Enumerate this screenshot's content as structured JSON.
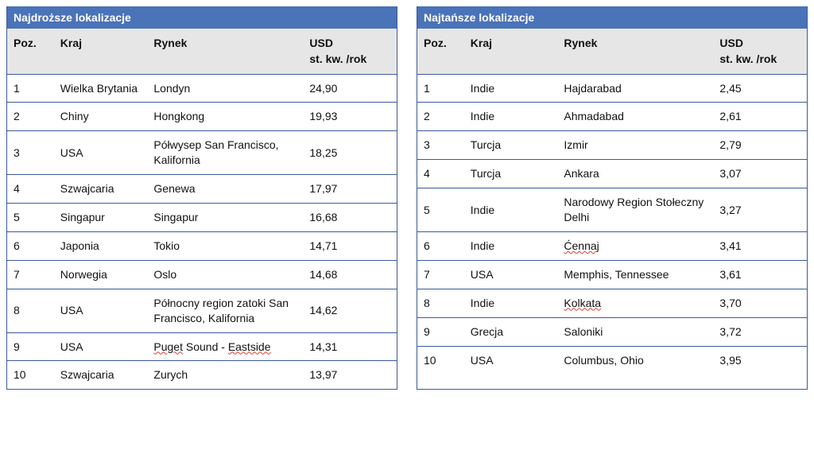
{
  "tables": {
    "expensive": {
      "title": "Najdroższe lokalizacje",
      "columns": {
        "poz": "Poz.",
        "kraj": "Kraj",
        "rynek": "Rynek",
        "usd": "USD\nst. kw. /rok"
      },
      "rows": [
        {
          "poz": "1",
          "kraj": "Wielka Brytania",
          "rynek": "Londyn",
          "usd": "24,90",
          "spell": false
        },
        {
          "poz": "2",
          "kraj": "Chiny",
          "rynek": "Hongkong",
          "usd": "19,93",
          "spell": false
        },
        {
          "poz": "3",
          "kraj": "USA",
          "rynek": "Półwysep San Francisco, Kalifornia",
          "usd": "18,25",
          "spell": false
        },
        {
          "poz": "4",
          "kraj": "Szwajcaria",
          "rynek": "Genewa",
          "usd": "17,97",
          "spell": false
        },
        {
          "poz": "5",
          "kraj": "Singapur",
          "rynek": "Singapur",
          "usd": "16,68",
          "spell": false
        },
        {
          "poz": "6",
          "kraj": "Japonia",
          "rynek": "Tokio",
          "usd": "14,71",
          "spell": false
        },
        {
          "poz": "7",
          "kraj": "Norwegia",
          "rynek": "Oslo",
          "usd": "14,68",
          "spell": false
        },
        {
          "poz": "8",
          "kraj": "USA",
          "rynek": "Północny region zatoki San Francisco, Kalifornia",
          "usd": "14,62",
          "spell": false
        },
        {
          "poz": "9",
          "kraj": "USA",
          "rynek": "Puget Sound - Eastside",
          "usd": "14,31",
          "spell": "Puget",
          "spellPart2": "Eastside"
        },
        {
          "poz": "10",
          "kraj": "Szwajcaria",
          "rynek": "Zurych",
          "usd": "13,97",
          "spell": false
        }
      ]
    },
    "cheap": {
      "title": "Najtańsze lokalizacje",
      "columns": {
        "poz": "Poz.",
        "kraj": "Kraj",
        "rynek": "Rynek",
        "usd": "USD\nst. kw. /rok"
      },
      "rows": [
        {
          "poz": "1",
          "kraj": "Indie",
          "rynek": "Hajdarabad",
          "usd": "2,45",
          "spell": false
        },
        {
          "poz": "2",
          "kraj": "Indie",
          "rynek": "Ahmadabad",
          "usd": "2,61",
          "spell": false
        },
        {
          "poz": "3",
          "kraj": "Turcja",
          "rynek": "Izmir",
          "usd": "2,79",
          "spell": false
        },
        {
          "poz": "4",
          "kraj": "Turcja",
          "rynek": "Ankara",
          "usd": "3,07",
          "spell": false
        },
        {
          "poz": "5",
          "kraj": "Indie",
          "rynek": "Narodowy Region Stołeczny Delhi",
          "usd": "3,27",
          "spell": false
        },
        {
          "poz": "6",
          "kraj": "Indie",
          "rynek": "Ćennaj",
          "usd": "3,41",
          "spell": "Ćennaj"
        },
        {
          "poz": "7",
          "kraj": "USA",
          "rynek": "Memphis, Tennessee",
          "usd": "3,61",
          "spell": false
        },
        {
          "poz": "8",
          "kraj": "Indie",
          "rynek": "Kolkata",
          "usd": "3,70",
          "spell": "Kolkata"
        },
        {
          "poz": "9",
          "kraj": "Grecja",
          "rynek": "Saloniki",
          "usd": "3,72",
          "spell": false
        },
        {
          "poz": "10",
          "kraj": "USA",
          "rynek": "Columbus, Ohio",
          "usd": "3,95",
          "spell": false
        }
      ]
    }
  },
  "styling": {
    "header_bg": "#4a73b8",
    "subheader_bg": "#e6e6e6",
    "border_color": "#3b5998",
    "text_color": "#111111",
    "header_text_color": "#ffffff",
    "font_size_header": 14,
    "font_size_cell": 14,
    "spellcheck_color": "#e23c2f"
  }
}
